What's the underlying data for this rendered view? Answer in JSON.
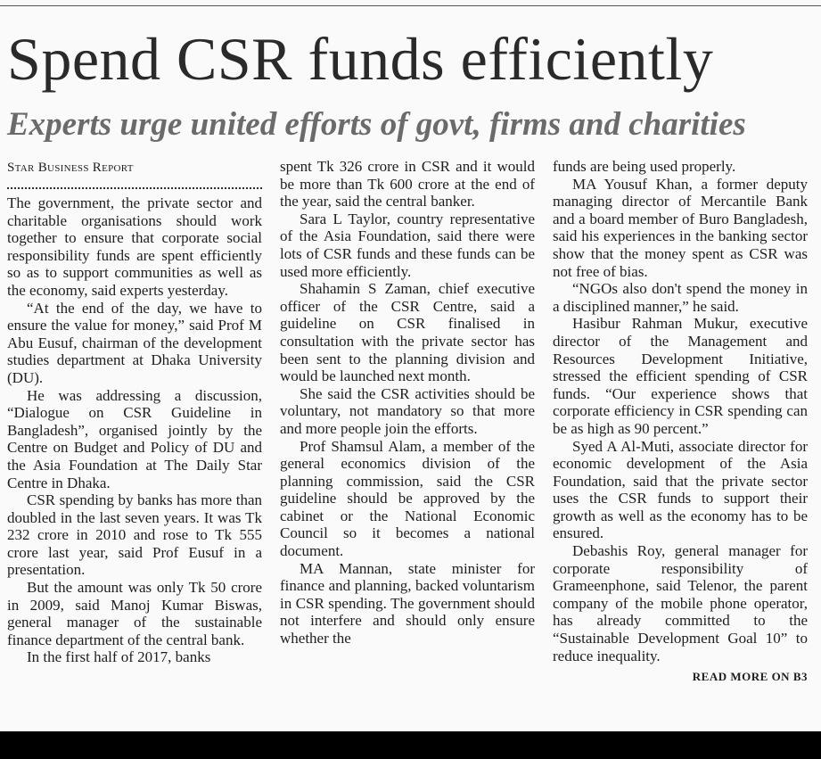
{
  "headline": "Spend CSR funds efficiently",
  "subheadline": "Experts urge united efforts of govt, firms and charities",
  "byline": "Star Business Report",
  "columns": [
    {
      "paragraphs": [
        "The government, the private sector and charitable organisations should work together to ensure that corporate social responsibility funds are spent efficiently so as to support communities as well as the economy, said experts yesterday.",
        "“At the end of the day, we have to ensure the value for money,” said Prof M Abu Eusuf, chairman of the development studies department at Dhaka University (DU).",
        "He was addressing a discussion, “Dialogue on CSR Guideline in Bangladesh”, organised jointly by the Centre on Budget and Policy of DU and the Asia Foundation at The Daily Star Centre in Dhaka.",
        "CSR spending by banks has more than doubled in the last seven years. It was Tk 232 crore in 2010 and rose to Tk 555 crore last year, said Prof Eusuf in a presentation.",
        "But the amount was only Tk 50 crore in 2009, said Manoj Kumar Biswas, general manager of the sustainable finance department of the central bank.",
        "In the first half of 2017, banks"
      ]
    },
    {
      "paragraphs": [
        "spent Tk 326 crore in CSR and it would be more than Tk 600 crore at the end of the year, said the central banker.",
        "Sara L Taylor, country representative of the Asia Foundation, said there were lots of CSR funds and these funds can be used more efficiently.",
        "Shahamin S Zaman, chief executive officer of the CSR Centre, said a guideline on CSR finalised in consultation with the private sector has been sent to the planning division and would be launched next month.",
        "She said the CSR activities should be voluntary, not mandatory so that more and more people join the efforts.",
        "Prof Shamsul Alam, a member of the general economics division of the planning commission, said the CSR guideline should be approved by the cabinet or the National Economic Council so it becomes a national document.",
        "MA Mannan, state minister for finance and planning, backed voluntarism in CSR spending. The government should not interfere and should only ensure whether the"
      ]
    },
    {
      "paragraphs": [
        "funds are being used properly.",
        "MA Yousuf Khan, a former deputy managing director of Mercantile Bank and a board member of Buro Bangladesh, said his experiences in the banking sector show that the money spent as CSR was not free of bias.",
        "“NGOs also don't spend the money in a disciplined manner,” he said.",
        "Hasibur Rahman Mukur, executive director of the Management and Resources Development Initiative, stressed the efficient spending of CSR funds. “Our experience shows that corporate efficiency in CSR spending can be as high as 90 percent.”",
        "Syed A Al-Muti, associate director for economic development of the Asia Foundation, said that the private sector uses the CSR funds to support their growth as well as the economy has to be ensured.",
        "Debashis Roy, general manager for corporate responsibility of Grameenphone, said Telenor, the parent company of the mobile phone operator, has already committed to the “Sustainable Development Goal 10” to reduce inequality."
      ],
      "read_more": "READ MORE ON B3"
    }
  ]
}
